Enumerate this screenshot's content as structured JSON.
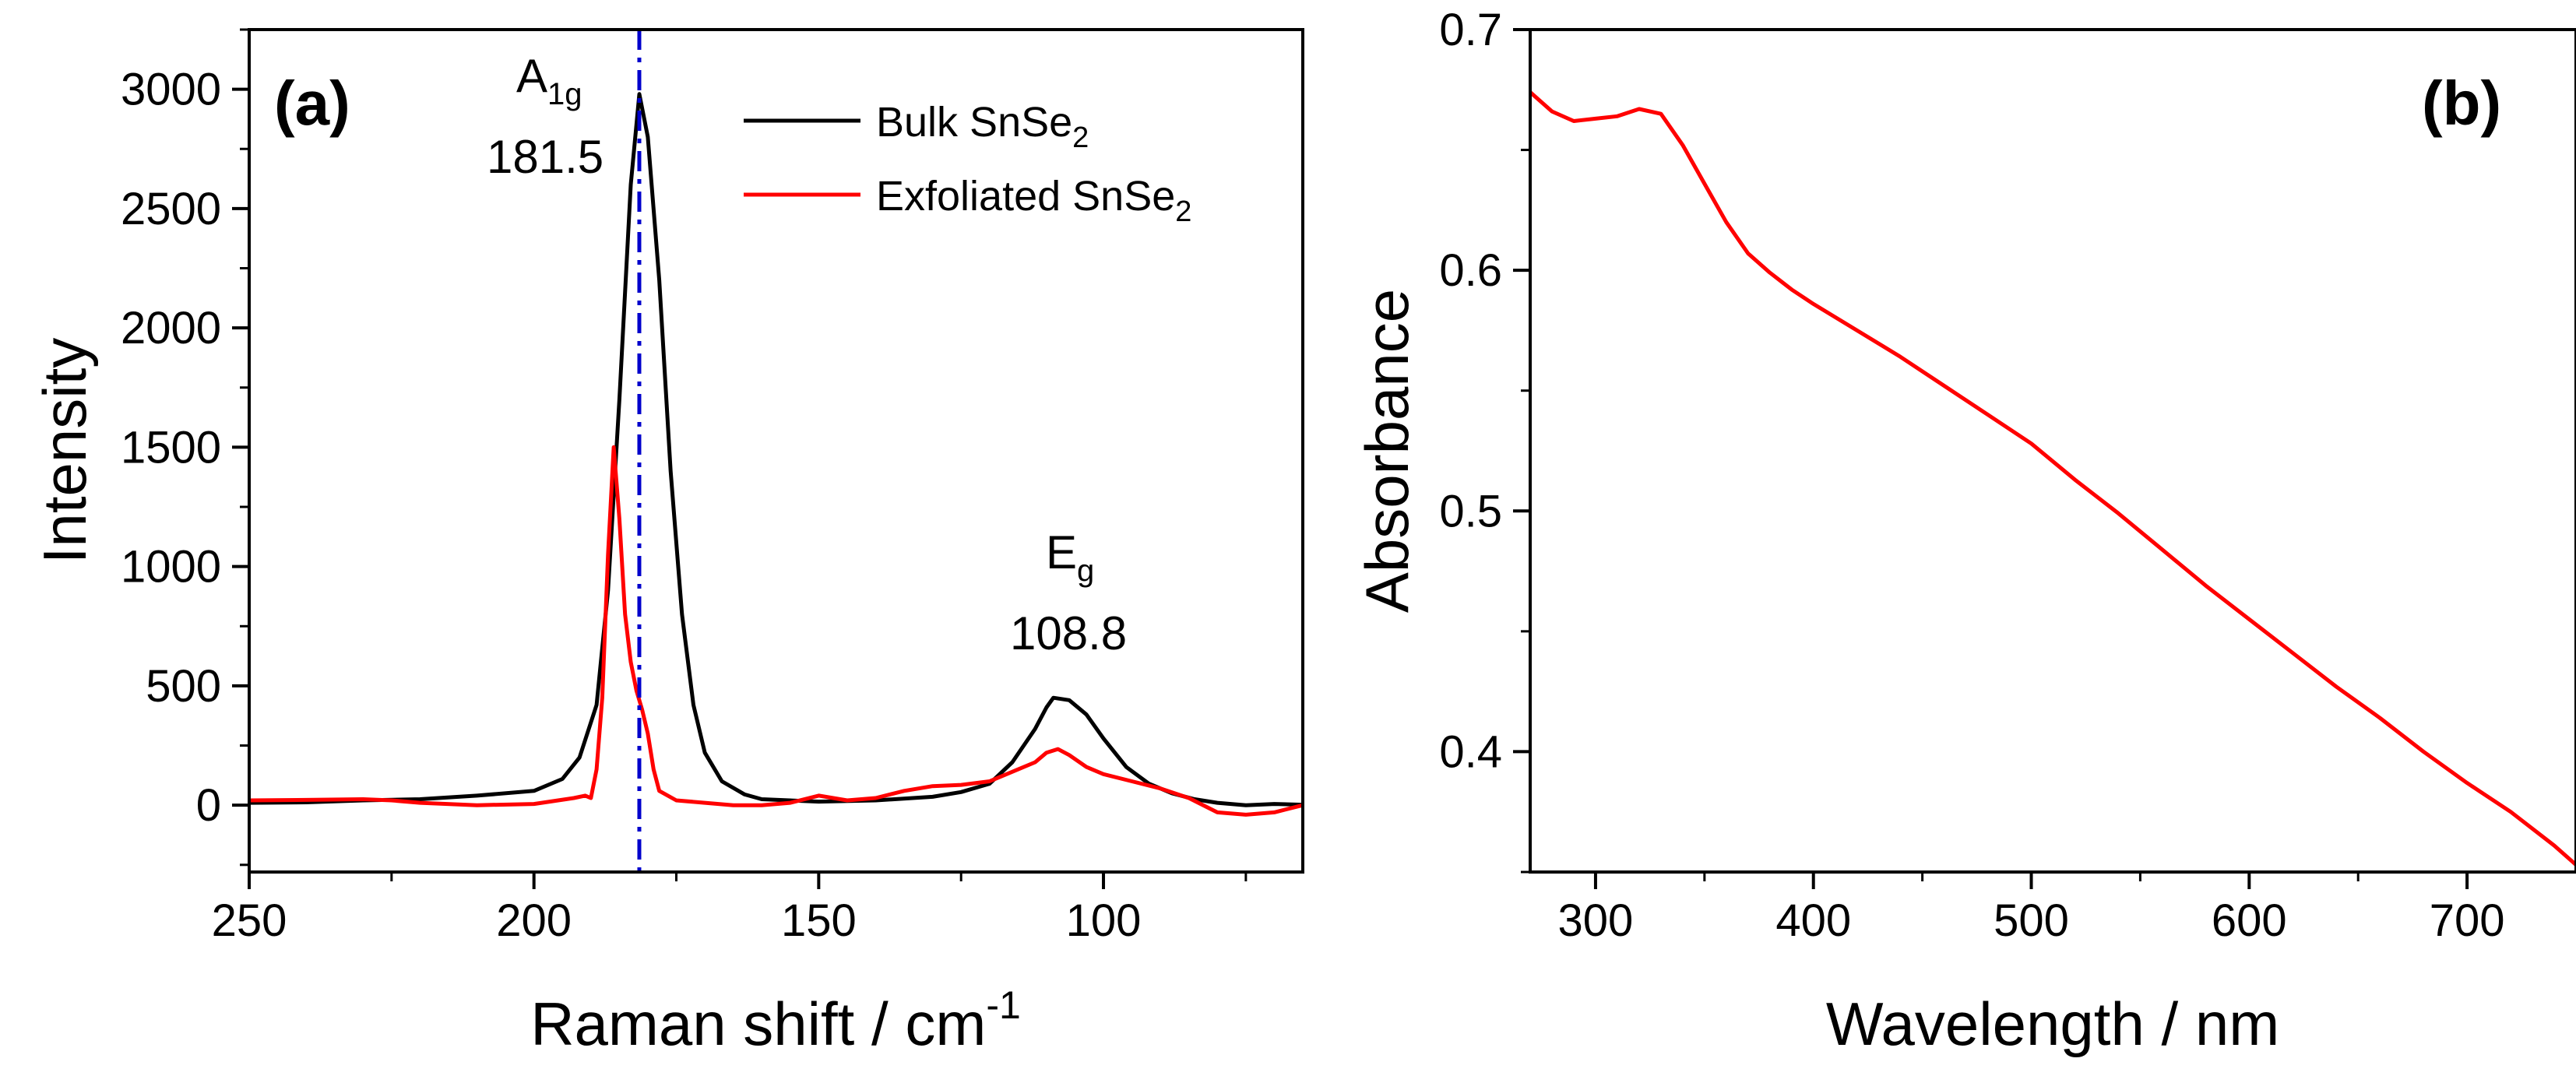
{
  "chart_data": [
    {
      "panel": "(a)",
      "type": "line",
      "xlabel": "Raman shift / cm",
      "xlabel_superscript": "-1",
      "ylabel": "Intensity",
      "xlim": [
        250,
        65
      ],
      "ylim": [
        -280,
        3250
      ],
      "xticks": [
        "250",
        "200",
        "150",
        "100"
      ],
      "yticks": [
        "0",
        "500",
        "1000",
        "1500",
        "2000",
        "2500",
        "3000"
      ],
      "legend_position": "top-right",
      "series": [
        {
          "name": "Bulk SnSe",
          "name_subscript": "2",
          "color": "#000000",
          "points": [
            [
              250,
              10
            ],
            [
              240,
              12
            ],
            [
              230,
              20
            ],
            [
              220,
              25
            ],
            [
              210,
              40
            ],
            [
              200,
              60
            ],
            [
              195,
              110
            ],
            [
              192,
              200
            ],
            [
              189,
              420
            ],
            [
              187,
              900
            ],
            [
              185,
              1700
            ],
            [
              183,
              2600
            ],
            [
              181.5,
              2980
            ],
            [
              180,
              2800
            ],
            [
              178,
              2200
            ],
            [
              176,
              1400
            ],
            [
              174,
              800
            ],
            [
              172,
              420
            ],
            [
              170,
              220
            ],
            [
              167,
              100
            ],
            [
              163,
              45
            ],
            [
              160,
              25
            ],
            [
              150,
              15
            ],
            [
              140,
              20
            ],
            [
              130,
              35
            ],
            [
              125,
              55
            ],
            [
              120,
              90
            ],
            [
              116,
              180
            ],
            [
              112,
              320
            ],
            [
              110,
              410
            ],
            [
              108.8,
              450
            ],
            [
              106,
              440
            ],
            [
              103,
              380
            ],
            [
              100,
              280
            ],
            [
              96,
              160
            ],
            [
              92,
              90
            ],
            [
              88,
              50
            ],
            [
              84,
              25
            ],
            [
              80,
              10
            ],
            [
              75,
              0
            ],
            [
              70,
              5
            ],
            [
              65,
              2
            ]
          ]
        },
        {
          "name": "Exfoliated SnSe",
          "name_subscript": "2",
          "color": "#ff0000",
          "points": [
            [
              250,
              20
            ],
            [
              240,
              22
            ],
            [
              230,
              25
            ],
            [
              225,
              20
            ],
            [
              220,
              10
            ],
            [
              210,
              0
            ],
            [
              200,
              5
            ],
            [
              193,
              30
            ],
            [
              191,
              40
            ],
            [
              190,
              30
            ],
            [
              189,
              150
            ],
            [
              188,
              450
            ],
            [
              187,
              1050
            ],
            [
              186,
              1500
            ],
            [
              185,
              1200
            ],
            [
              184,
              800
            ],
            [
              183,
              600
            ],
            [
              182,
              480
            ],
            [
              181,
              400
            ],
            [
              180,
              300
            ],
            [
              179,
              150
            ],
            [
              178,
              60
            ],
            [
              175,
              20
            ],
            [
              170,
              10
            ],
            [
              165,
              0
            ],
            [
              160,
              0
            ],
            [
              155,
              10
            ],
            [
              150,
              40
            ],
            [
              145,
              20
            ],
            [
              140,
              30
            ],
            [
              135,
              60
            ],
            [
              130,
              80
            ],
            [
              125,
              85
            ],
            [
              120,
              100
            ],
            [
              115,
              150
            ],
            [
              112,
              180
            ],
            [
              110,
              220
            ],
            [
              108,
              235
            ],
            [
              106,
              210
            ],
            [
              103,
              160
            ],
            [
              100,
              130
            ],
            [
              95,
              100
            ],
            [
              90,
              70
            ],
            [
              85,
              30
            ],
            [
              80,
              -30
            ],
            [
              75,
              -40
            ],
            [
              70,
              -30
            ],
            [
              65,
              0
            ]
          ]
        }
      ],
      "annotations": [
        {
          "label": "A",
          "subscript": "1g",
          "value": "181.5"
        },
        {
          "label": "E",
          "subscript": "g",
          "value": "108.8"
        }
      ],
      "reference_line": {
        "x": 181.5,
        "style": "dash-dot",
        "color": "#0000cc"
      }
    },
    {
      "panel": "(b)",
      "type": "line",
      "xlabel": "Wavelength / nm",
      "ylabel": "Absorbance",
      "xlim": [
        270,
        750
      ],
      "ylim": [
        0.35,
        0.7
      ],
      "xticks": [
        "300",
        "400",
        "500",
        "600",
        "700"
      ],
      "yticks": [
        "0.4",
        "0.5",
        "0.6",
        "0.7"
      ],
      "series": [
        {
          "name": "Absorbance",
          "color": "#ff0000",
          "points": [
            [
              270,
              0.674
            ],
            [
              280,
              0.666
            ],
            [
              290,
              0.662
            ],
            [
              300,
              0.663
            ],
            [
              310,
              0.664
            ],
            [
              320,
              0.667
            ],
            [
              330,
              0.665
            ],
            [
              340,
              0.652
            ],
            [
              350,
              0.636
            ],
            [
              360,
              0.62
            ],
            [
              370,
              0.607
            ],
            [
              380,
              0.599
            ],
            [
              390,
              0.592
            ],
            [
              400,
              0.586
            ],
            [
              420,
              0.575
            ],
            [
              440,
              0.564
            ],
            [
              460,
              0.552
            ],
            [
              480,
              0.54
            ],
            [
              500,
              0.528
            ],
            [
              520,
              0.513
            ],
            [
              540,
              0.499
            ],
            [
              560,
              0.484
            ],
            [
              580,
              0.469
            ],
            [
              600,
              0.455
            ],
            [
              620,
              0.441
            ],
            [
              640,
              0.427
            ],
            [
              660,
              0.414
            ],
            [
              680,
              0.4
            ],
            [
              700,
              0.387
            ],
            [
              720,
              0.375
            ],
            [
              740,
              0.361
            ],
            [
              750,
              0.353
            ]
          ]
        }
      ]
    }
  ]
}
